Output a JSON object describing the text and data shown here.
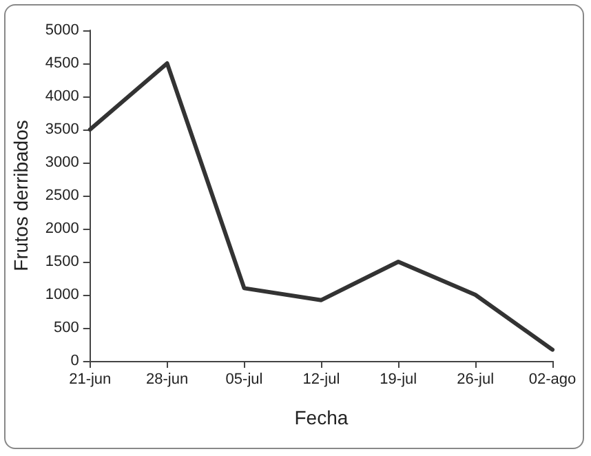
{
  "chart_data": {
    "type": "line",
    "xlabel": "Fecha",
    "ylabel": "Frutos derribados",
    "categories": [
      "21-jun",
      "28-jun",
      "05-jul",
      "12-jul",
      "19-jul",
      "26-jul",
      "02-ago"
    ],
    "series": [
      {
        "color": "#333333",
        "values": [
          3500,
          4500,
          1100,
          920,
          1500,
          1000,
          170
        ]
      }
    ],
    "ylim": [
      0,
      5000
    ],
    "yticks": [
      0,
      500,
      1000,
      1500,
      2000,
      2500,
      3000,
      3500,
      4000,
      4500,
      5000
    ],
    "grid": false,
    "marker": "none",
    "line_style": "solid"
  }
}
